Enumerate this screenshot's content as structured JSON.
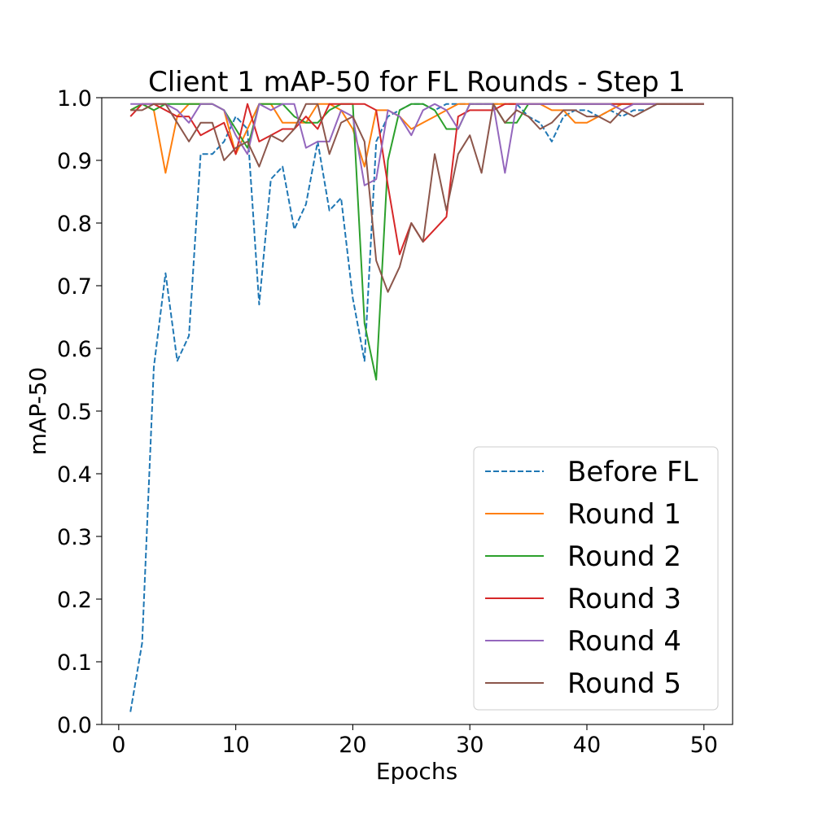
{
  "chart_data": {
    "type": "line",
    "title": "Client 1 mAP-50 for FL Rounds - Step 1",
    "xlabel": "Epochs",
    "ylabel": "mAP-50",
    "xlim": [
      -1.45,
      52.45
    ],
    "ylim": [
      0.0,
      1.0
    ],
    "xticks": [
      0,
      10,
      20,
      30,
      40,
      50
    ],
    "xtick_labels": [
      "0",
      "10",
      "20",
      "30",
      "40",
      "50"
    ],
    "yticks": [
      0.0,
      0.1,
      0.2,
      0.3,
      0.4,
      0.5,
      0.6,
      0.7,
      0.8,
      0.9,
      1.0
    ],
    "ytick_labels": [
      "0.0",
      "0.1",
      "0.2",
      "0.3",
      "0.4",
      "0.5",
      "0.6",
      "0.7",
      "0.8",
      "0.9",
      "1.0"
    ],
    "grid": false,
    "legend_position": "lower-right",
    "x": [
      1,
      2,
      3,
      4,
      5,
      6,
      7,
      8,
      9,
      10,
      11,
      12,
      13,
      14,
      15,
      16,
      17,
      18,
      19,
      20,
      21,
      22,
      23,
      24,
      25,
      26,
      27,
      28,
      29,
      30,
      31,
      32,
      33,
      34,
      35,
      36,
      37,
      38,
      39,
      40,
      41,
      42,
      43,
      44,
      45,
      46,
      47,
      48,
      49,
      50
    ],
    "series": [
      {
        "name": "Before FL",
        "color": "#1f77b4",
        "dash": "dashed",
        "values": [
          0.02,
          0.13,
          0.57,
          0.72,
          0.58,
          0.62,
          0.91,
          0.91,
          0.93,
          0.97,
          0.95,
          0.67,
          0.87,
          0.89,
          0.79,
          0.83,
          0.93,
          0.82,
          0.84,
          0.68,
          0.58,
          0.93,
          0.97,
          0.98,
          0.99,
          0.99,
          0.98,
          0.99,
          0.99,
          0.99,
          0.99,
          0.99,
          0.99,
          0.99,
          0.97,
          0.96,
          0.93,
          0.97,
          0.98,
          0.98,
          0.97,
          0.98,
          0.97,
          0.98,
          0.98,
          0.99,
          0.99,
          0.99,
          0.99,
          0.99
        ]
      },
      {
        "name": "Round 1",
        "color": "#ff7f0e",
        "dash": "solid",
        "values": [
          0.98,
          0.99,
          0.98,
          0.88,
          0.97,
          0.99,
          0.99,
          0.99,
          0.98,
          0.91,
          0.95,
          0.99,
          0.99,
          0.96,
          0.96,
          0.96,
          0.99,
          0.99,
          0.98,
          0.95,
          0.89,
          0.98,
          0.98,
          0.97,
          0.95,
          0.96,
          0.97,
          0.98,
          0.99,
          0.99,
          0.99,
          0.99,
          0.99,
          0.99,
          0.99,
          0.99,
          0.98,
          0.98,
          0.96,
          0.96,
          0.97,
          0.98,
          0.99,
          0.99,
          0.99,
          0.99,
          0.99,
          0.99,
          0.99,
          0.99
        ]
      },
      {
        "name": "Round 2",
        "color": "#2ca02c",
        "dash": "solid",
        "values": [
          0.98,
          0.99,
          0.98,
          0.99,
          0.99,
          0.99,
          0.99,
          0.99,
          0.98,
          0.95,
          0.92,
          0.99,
          0.99,
          0.99,
          0.97,
          0.96,
          0.96,
          0.98,
          0.99,
          0.99,
          0.64,
          0.55,
          0.9,
          0.98,
          0.99,
          0.99,
          0.98,
          0.95,
          0.95,
          0.99,
          0.99,
          0.99,
          0.96,
          0.96,
          0.99,
          0.99,
          0.99,
          0.99,
          0.99,
          0.99,
          0.99,
          0.99,
          0.99,
          0.99,
          0.99,
          0.99,
          0.99,
          0.99,
          0.99,
          0.99
        ]
      },
      {
        "name": "Round 3",
        "color": "#d62728",
        "dash": "solid",
        "values": [
          0.97,
          0.99,
          0.99,
          0.98,
          0.97,
          0.97,
          0.94,
          0.95,
          0.96,
          0.91,
          0.99,
          0.93,
          0.94,
          0.95,
          0.95,
          0.97,
          0.95,
          0.99,
          0.99,
          0.99,
          0.99,
          0.98,
          0.86,
          0.75,
          0.8,
          0.77,
          0.79,
          0.81,
          0.97,
          0.98,
          0.98,
          0.98,
          0.99,
          0.99,
          0.99,
          0.99,
          0.99,
          0.99,
          0.99,
          0.99,
          0.99,
          0.99,
          0.99,
          0.99,
          0.99,
          0.99,
          0.99,
          0.99,
          0.99,
          0.99
        ]
      },
      {
        "name": "Round 4",
        "color": "#9467bd",
        "dash": "solid",
        "values": [
          0.99,
          0.99,
          0.99,
          0.99,
          0.98,
          0.96,
          0.99,
          0.99,
          0.98,
          0.94,
          0.91,
          0.99,
          0.98,
          0.99,
          0.99,
          0.92,
          0.93,
          0.93,
          0.98,
          0.97,
          0.86,
          0.87,
          0.98,
          0.97,
          0.94,
          0.98,
          0.99,
          0.98,
          0.95,
          0.99,
          0.99,
          0.99,
          0.88,
          0.99,
          0.99,
          0.99,
          0.99,
          0.99,
          0.99,
          0.99,
          0.99,
          0.99,
          0.98,
          0.99,
          0.99,
          0.99,
          0.99,
          0.99,
          0.99,
          0.99
        ]
      },
      {
        "name": "Round 5",
        "color": "#8c564b",
        "dash": "solid",
        "values": [
          0.98,
          0.98,
          0.99,
          0.99,
          0.96,
          0.93,
          0.96,
          0.96,
          0.9,
          0.92,
          0.93,
          0.89,
          0.94,
          0.93,
          0.95,
          0.99,
          0.99,
          0.91,
          0.96,
          0.97,
          0.93,
          0.74,
          0.69,
          0.73,
          0.8,
          0.77,
          0.91,
          0.82,
          0.91,
          0.94,
          0.88,
          0.99,
          0.96,
          0.98,
          0.97,
          0.95,
          0.96,
          0.98,
          0.98,
          0.97,
          0.97,
          0.96,
          0.98,
          0.97,
          0.98,
          0.99,
          0.99,
          0.99,
          0.99,
          0.99
        ]
      }
    ]
  }
}
